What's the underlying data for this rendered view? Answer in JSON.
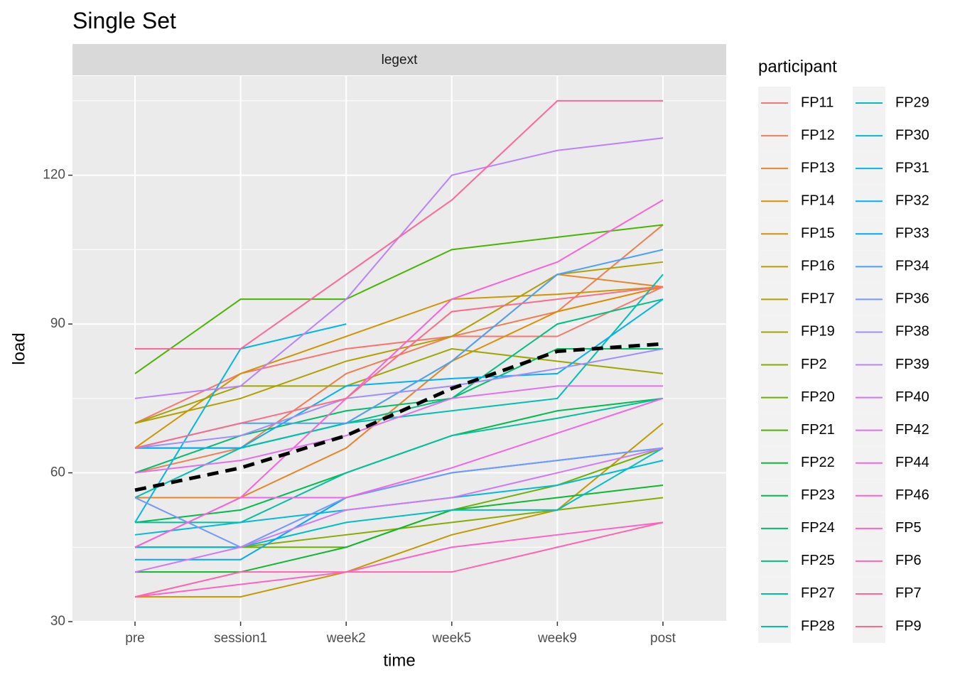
{
  "chart_data": {
    "type": "line",
    "title": "Single Set",
    "facet": "legext",
    "x_label": "time",
    "y_label": "load",
    "legend_title": "participant",
    "categories": [
      "pre",
      "session1",
      "week2",
      "week5",
      "week9",
      "post"
    ],
    "ylim": [
      30,
      140
    ],
    "yticks": [
      30,
      60,
      90,
      120
    ],
    "yminor": [
      45,
      75,
      105,
      135
    ],
    "grid": true,
    "mean_line": {
      "color": "#000000",
      "dashed": true,
      "values": [
        56.5,
        61,
        67.5,
        77,
        84.5,
        86
      ]
    },
    "series": [
      {
        "name": "FP11",
        "color": "#F8766D",
        "values": [
          70,
          80,
          85,
          87.5,
          87.5,
          97.5
        ]
      },
      {
        "name": "FP12",
        "color": "#F07E50",
        "values": [
          60,
          65,
          80,
          87.5,
          92.5,
          110
        ]
      },
      {
        "name": "FP13",
        "color": "#E88526",
        "values": [
          55,
          55,
          65,
          82.5,
          100,
          97.5
        ]
      },
      {
        "name": "FP14",
        "color": "#DC8D00",
        "values": [
          65,
          65,
          70,
          82.5,
          92.5,
          97.5
        ]
      },
      {
        "name": "FP15",
        "color": "#D09400",
        "values": [
          65,
          80,
          87.5,
          95,
          96,
          97.5
        ]
      },
      {
        "name": "FP16",
        "color": "#C29A00",
        "values": [
          35,
          35,
          40,
          47.5,
          52.5,
          70
        ]
      },
      {
        "name": "FP17",
        "color": "#B2A000",
        "values": [
          70,
          75,
          82.5,
          87.5,
          100,
          102.5
        ]
      },
      {
        "name": "FP19",
        "color": "#9FA600",
        "values": [
          70,
          77.5,
          77.5,
          85,
          82.5,
          80
        ]
      },
      {
        "name": "FP2",
        "color": "#88AB00",
        "values": [
          45,
          45,
          47.5,
          50,
          52.5,
          55
        ]
      },
      {
        "name": "FP20",
        "color": "#6FB000",
        "values": [
          45,
          45,
          45,
          52.5,
          57.5,
          65
        ]
      },
      {
        "name": "FP21",
        "color": "#4AB500",
        "values": [
          80,
          95,
          95,
          105,
          107.5,
          110
        ]
      },
      {
        "name": "FP22",
        "color": "#0CB92F",
        "values": [
          40,
          40,
          45,
          52.5,
          55,
          57.5
        ]
      },
      {
        "name": "FP23",
        "color": "#00BB4E",
        "values": [
          50,
          52.5,
          60,
          67.5,
          72.5,
          75
        ]
      },
      {
        "name": "FP24",
        "color": "#00BD6A",
        "values": [
          60,
          67.5,
          72.5,
          75,
          85,
          85
        ]
      },
      {
        "name": "FP25",
        "color": "#00BF85",
        "values": [
          65,
          65,
          70,
          75,
          90,
          95
        ]
      },
      {
        "name": "FP27",
        "color": "#00C09D",
        "values": [
          50,
          50,
          60,
          67.5,
          71,
          75
        ]
      },
      {
        "name": "FP28",
        "color": "#00C0B2",
        "values": [
          55,
          65,
          70,
          72.5,
          75,
          100
        ]
      },
      {
        "name": "FP29",
        "color": "#00BFC4",
        "values": [
          45,
          45,
          50,
          52.5,
          52.5,
          65
        ]
      },
      {
        "name": "FP30",
        "color": "#00BCD6",
        "values": [
          47.5,
          50,
          52.5,
          55,
          57.5,
          62.5
        ]
      },
      {
        "name": "FP31",
        "color": "#00B7E6",
        "values": [
          50,
          85,
          90,
          null,
          null,
          null
        ]
      },
      {
        "name": "FP32",
        "color": "#00B1F3",
        "values": [
          65,
          65,
          77.5,
          79,
          80,
          95
        ]
      },
      {
        "name": "FP33",
        "color": "#00A8FF",
        "values": [
          42.5,
          42.5,
          55,
          60,
          62.5,
          65
        ]
      },
      {
        "name": "FP34",
        "color": "#4AA0FF",
        "values": [
          65,
          70,
          70,
          82.5,
          100,
          105
        ]
      },
      {
        "name": "FP36",
        "color": "#7398FF",
        "values": [
          55,
          45,
          55,
          60,
          62.5,
          65
        ]
      },
      {
        "name": "FP38",
        "color": "#9F8DFF",
        "values": [
          65,
          67.5,
          75,
          77.5,
          81,
          85
        ]
      },
      {
        "name": "FP39",
        "color": "#BB81FF",
        "values": [
          75,
          77.5,
          95,
          120,
          125,
          127.5
        ]
      },
      {
        "name": "FP40",
        "color": "#D078FA",
        "values": [
          40,
          45,
          52.5,
          55,
          60,
          65
        ]
      },
      {
        "name": "FP42",
        "color": "#E26EF0",
        "values": [
          60,
          62.5,
          67.5,
          75,
          77.5,
          77.5
        ]
      },
      {
        "name": "FP44",
        "color": "#F066E7",
        "values": [
          45,
          55,
          55,
          61,
          68,
          75
        ]
      },
      {
        "name": "FP46",
        "color": "#F963D6",
        "values": [
          45,
          55,
          75,
          95,
          102.5,
          115
        ]
      },
      {
        "name": "FP5",
        "color": "#FE62C4",
        "values": [
          35,
          37.5,
          40,
          45,
          47.5,
          50
        ]
      },
      {
        "name": "FP6",
        "color": "#FF63B2",
        "values": [
          35,
          40,
          40,
          40,
          45,
          50
        ]
      },
      {
        "name": "FP7",
        "color": "#FF669D",
        "values": [
          85,
          85,
          100,
          115,
          135,
          135
        ]
      },
      {
        "name": "FP9",
        "color": "#FC6B87",
        "values": [
          65,
          70,
          75,
          92.5,
          95,
          97.5
        ]
      }
    ]
  }
}
